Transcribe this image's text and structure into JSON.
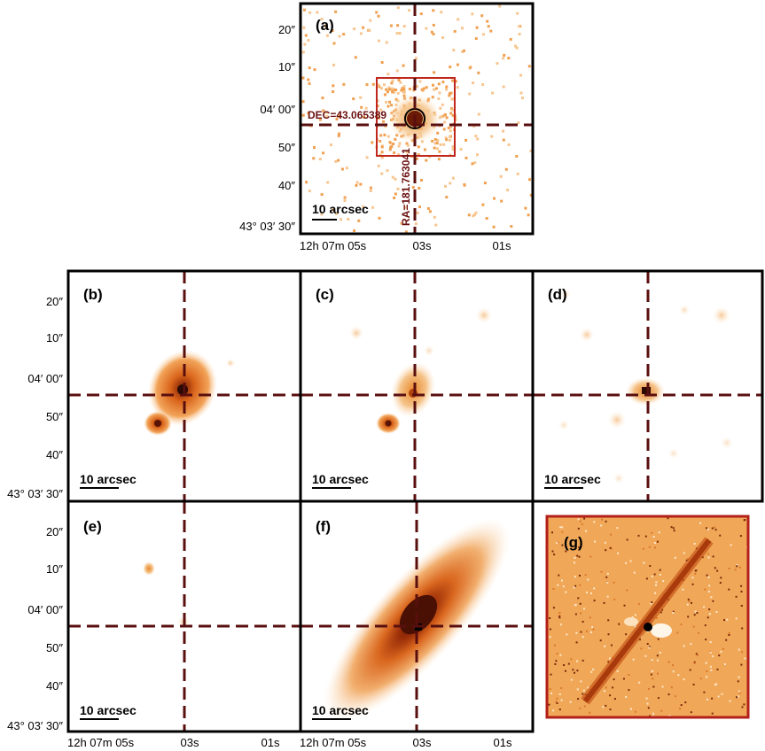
{
  "ra_ticks": [
    "12h 07m 05s",
    "03s",
    "01s"
  ],
  "dec_ticks": [
    "20″",
    "10″",
    "04′ 00″",
    "50″",
    "40″",
    "43° 03′ 30″"
  ],
  "scale_bar_label": "10 arcsec",
  "annotations": {
    "dec": "DEC=43.065389",
    "ra": "RA=181.763041"
  },
  "panels": [
    {
      "label": "(a)"
    },
    {
      "label": "(b)"
    },
    {
      "label": "(c)"
    },
    {
      "label": "(d)"
    },
    {
      "label": "(e)"
    },
    {
      "label": "(f)"
    },
    {
      "label": "(g)"
    }
  ],
  "colors": {
    "crosshair": "#5a0f0f",
    "box": "#c0281e",
    "emission_light": "#f5c48a",
    "emission_mid": "#e07820",
    "emission_dark": "#8a2a0a"
  }
}
